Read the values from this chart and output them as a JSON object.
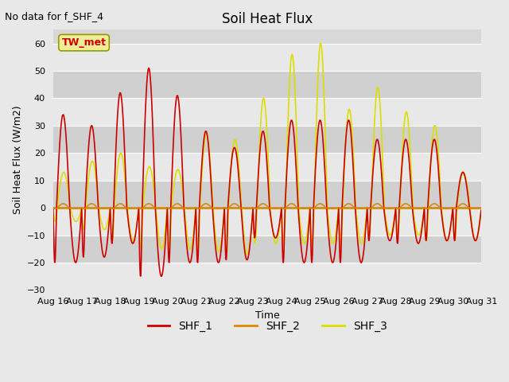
{
  "title": "Soil Heat Flux",
  "top_left_text": "No data for f_SHF_4",
  "ylabel": "Soil Heat Flux (W/m2)",
  "xlabel": "Time",
  "ylim": [
    -30,
    65
  ],
  "yticks": [
    -30,
    -20,
    -10,
    0,
    10,
    20,
    30,
    40,
    50,
    60
  ],
  "fig_bg_color": "#e8e8e8",
  "plot_bg_color": "#d8d8d8",
  "shf1_color": "#cc0000",
  "shf2_color": "#dd8800",
  "shf3_color": "#dddd00",
  "zero_line_color": "#cc8800",
  "legend_items": [
    "SHF_1",
    "SHF_2",
    "SHF_3"
  ],
  "legend_box_label": "TW_met",
  "legend_box_facecolor": "#eeee99",
  "legend_box_edgecolor": "#999900",
  "legend_box_text_color": "#cc0000",
  "grid_color": "#ffffff",
  "band_color_light": "#e8e8e8",
  "band_color_dark": "#d0d0d0",
  "title_fontsize": 12,
  "axis_label_fontsize": 9,
  "tick_fontsize": 8
}
